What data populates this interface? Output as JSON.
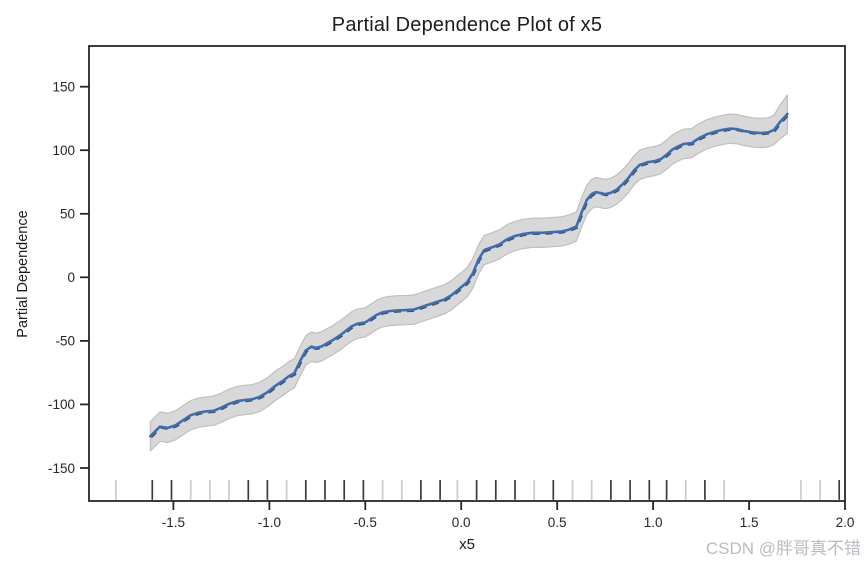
{
  "page": {
    "background": "#ffffff"
  },
  "watermark": {
    "text": "CSDN @胖哥真不错",
    "color": "#b8bcc2"
  },
  "chart_data": {
    "type": "line",
    "title": "Partial Dependence Plot of x5",
    "xlabel": "x5",
    "ylabel": "Partial Dependence",
    "xlim": [
      -1.94,
      2.0
    ],
    "ylim": [
      -176,
      182
    ],
    "grid": false,
    "legend": null,
    "xtick_values": [
      -1.5,
      -1.0,
      -0.5,
      0.0,
      0.5,
      1.0,
      1.5,
      2.0
    ],
    "xtick_labels": [
      "-1.5",
      "-1.0",
      "-0.5",
      "0.0",
      "0.5",
      "1.0",
      "1.5",
      "2.0"
    ],
    "ytick_values": [
      150,
      100,
      50,
      0,
      -50,
      -100,
      -150
    ],
    "ytick_labels": [
      "150",
      "100",
      "50",
      "0",
      "-50",
      "-100",
      "-150"
    ],
    "axis_color": "#262626",
    "tick_label_color": "#262626",
    "series": [
      {
        "name": "partial-dependence",
        "color": "#3a6db4",
        "x": [
          -1.62,
          -1.57,
          -1.53,
          -1.49,
          -1.45,
          -1.41,
          -1.37,
          -1.33,
          -1.29,
          -1.25,
          -1.21,
          -1.17,
          -1.13,
          -1.09,
          -1.05,
          -1.01,
          -0.97,
          -0.93,
          -0.9,
          -0.87,
          -0.84,
          -0.81,
          -0.78,
          -0.76,
          -0.73,
          -0.7,
          -0.67,
          -0.63,
          -0.6,
          -0.57,
          -0.54,
          -0.5,
          -0.47,
          -0.44,
          -0.41,
          -0.37,
          -0.33,
          -0.29,
          -0.25,
          -0.21,
          -0.17,
          -0.13,
          -0.09,
          -0.05,
          -0.01,
          0.03,
          0.06,
          0.09,
          0.12,
          0.16,
          0.2,
          0.24,
          0.28,
          0.32,
          0.37,
          0.42,
          0.47,
          0.52,
          0.56,
          0.6,
          0.63,
          0.655,
          0.68,
          0.7,
          0.72,
          0.75,
          0.78,
          0.81,
          0.84,
          0.87,
          0.9,
          0.93,
          0.97,
          1.01,
          1.04,
          1.07,
          1.1,
          1.13,
          1.16,
          1.2,
          1.24,
          1.28,
          1.32,
          1.36,
          1.4,
          1.44,
          1.48,
          1.52,
          1.56,
          1.6,
          1.63,
          1.66,
          1.7
        ],
        "y": [
          -125,
          -117.5,
          -118.5,
          -116.5,
          -112.5,
          -108.5,
          -106.5,
          -105.5,
          -105,
          -102.5,
          -99.5,
          -97.5,
          -96.5,
          -96,
          -94,
          -90.5,
          -85.5,
          -81.5,
          -78,
          -75.5,
          -66,
          -57.5,
          -54.5,
          -55.5,
          -54.5,
          -52,
          -49.5,
          -45.5,
          -42,
          -38.5,
          -36.5,
          -35.5,
          -32.5,
          -29.5,
          -27.5,
          -26.5,
          -26,
          -25.8,
          -25.5,
          -23.5,
          -21.5,
          -19.5,
          -17.5,
          -14,
          -9,
          -4,
          3,
          14,
          21.5,
          23.5,
          26,
          30,
          32.5,
          34,
          35,
          35,
          35.5,
          36,
          37.5,
          40,
          52,
          61,
          65.5,
          67,
          66.5,
          65.5,
          66.5,
          69,
          73,
          78,
          84,
          88.5,
          90.5,
          91.5,
          93,
          96.5,
          100.5,
          103,
          105,
          105.5,
          109.5,
          112.5,
          114.5,
          116,
          117,
          116.5,
          115,
          114,
          113.5,
          114,
          116,
          122,
          128.5
        ]
      }
    ],
    "band": {
      "name": "confidence-band",
      "fill": "#d8d8d8",
      "edge": "#bfbfbf",
      "halfwidth": 11.5,
      "end_halfwidth": 15
    },
    "underlay_dash_color": "#4f4f4f",
    "rug": {
      "x": [
        -1.8,
        -1.61,
        -1.51,
        -1.41,
        -1.31,
        -1.21,
        -1.11,
        -1.01,
        -0.91,
        -0.81,
        -0.71,
        -0.61,
        -0.51,
        -0.41,
        -0.31,
        -0.21,
        -0.11,
        -0.02,
        0.08,
        0.18,
        0.28,
        0.38,
        0.48,
        0.58,
        0.68,
        0.78,
        0.88,
        0.98,
        1.07,
        1.17,
        1.27,
        1.37,
        1.77,
        1.87,
        1.97
      ],
      "shade": [
        "l",
        "d",
        "d",
        "l",
        "l",
        "l",
        "d",
        "d",
        "l",
        "d",
        "d",
        "d",
        "d",
        "l",
        "l",
        "d",
        "d",
        "l",
        "d",
        "d",
        "d",
        "l",
        "d",
        "l",
        "l",
        "d",
        "d",
        "d",
        "d",
        "l",
        "d",
        "l",
        "l",
        "l",
        "d"
      ],
      "light_color": "#cacbcd",
      "dark_color": "#3b3b3b"
    }
  }
}
